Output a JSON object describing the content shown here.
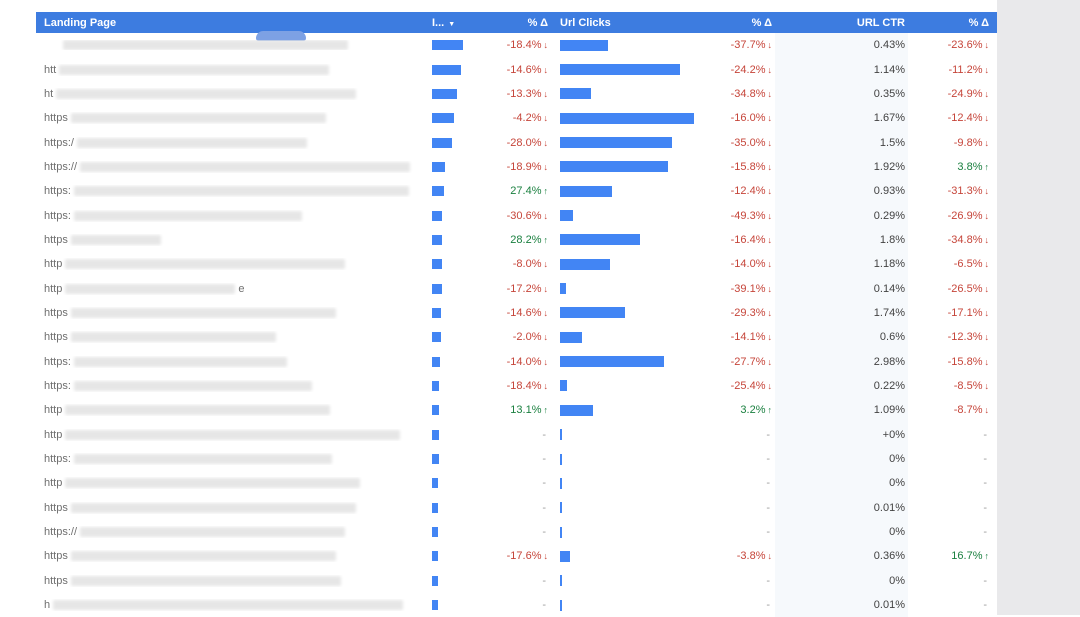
{
  "header": {
    "columns": {
      "landing_page": "Landing Page",
      "impressions": "I...",
      "impressions_sort": "▼",
      "imp_delta": "% Δ",
      "url_clicks": "Url Clicks",
      "clicks_delta": "% Δ",
      "url_ctr": "URL CTR",
      "ctr_delta": "% Δ"
    }
  },
  "colors": {
    "header_bg": "#3d7ce0",
    "header_blob": "#7da1e4",
    "bar_blue": "#4285f4",
    "negative": "#c6453a",
    "positive": "#1b8040",
    "dash": "#9e9e9e",
    "ctr_band": "#f6f9fc"
  },
  "table": {
    "rows": [
      {
        "prefix": "",
        "suffix": "",
        "indent": 16,
        "blur_w": 285,
        "imp_bar": 31,
        "imp_delta": "-18.4%",
        "imp_dir": "down",
        "clicks_bar": 48,
        "clicks_delta": "-37.7%",
        "clicks_dir": "down",
        "ctr": "0.43%",
        "ctr_delta": "-23.6%",
        "ctr_dir": "down"
      },
      {
        "prefix": "htt",
        "suffix": "",
        "indent": 0,
        "blur_w": 270,
        "imp_bar": 29,
        "imp_delta": "-14.6%",
        "imp_dir": "down",
        "clicks_bar": 120,
        "clicks_delta": "-24.2%",
        "clicks_dir": "down",
        "ctr": "1.14%",
        "ctr_delta": "-11.2%",
        "ctr_dir": "down"
      },
      {
        "prefix": "ht",
        "suffix": "",
        "indent": 0,
        "blur_w": 300,
        "imp_bar": 25,
        "imp_delta": "-13.3%",
        "imp_dir": "down",
        "clicks_bar": 31,
        "clicks_delta": "-34.8%",
        "clicks_dir": "down",
        "ctr": "0.35%",
        "ctr_delta": "-24.9%",
        "ctr_dir": "down"
      },
      {
        "prefix": "https",
        "suffix": "",
        "indent": 0,
        "blur_w": 255,
        "imp_bar": 22,
        "imp_delta": "-4.2%",
        "imp_dir": "down",
        "clicks_bar": 134,
        "clicks_delta": "-16.0%",
        "clicks_dir": "down",
        "ctr": "1.67%",
        "ctr_delta": "-12.4%",
        "ctr_dir": "down"
      },
      {
        "prefix": "https:/",
        "suffix": "",
        "indent": 0,
        "blur_w": 230,
        "imp_bar": 20,
        "imp_delta": "-28.0%",
        "imp_dir": "down",
        "clicks_bar": 112,
        "clicks_delta": "-35.0%",
        "clicks_dir": "down",
        "ctr": "1.5%",
        "ctr_delta": "-9.8%",
        "ctr_dir": "down"
      },
      {
        "prefix": "https://",
        "suffix": "",
        "indent": 0,
        "blur_w": 330,
        "imp_bar": 13,
        "imp_delta": "-18.9%",
        "imp_dir": "down",
        "clicks_bar": 108,
        "clicks_delta": "-15.8%",
        "clicks_dir": "down",
        "ctr": "1.92%",
        "ctr_delta": "3.8%",
        "ctr_dir": "up"
      },
      {
        "prefix": "https:",
        "suffix": "",
        "indent": 0,
        "blur_w": 335,
        "imp_bar": 12,
        "imp_delta": "27.4%",
        "imp_dir": "up",
        "clicks_bar": 52,
        "clicks_delta": "-12.4%",
        "clicks_dir": "down",
        "ctr": "0.93%",
        "ctr_delta": "-31.3%",
        "ctr_dir": "down"
      },
      {
        "prefix": "https:",
        "suffix": "",
        "indent": 0,
        "blur_w": 228,
        "imp_bar": 10,
        "imp_delta": "-30.6%",
        "imp_dir": "down",
        "clicks_bar": 13,
        "clicks_delta": "-49.3%",
        "clicks_dir": "down",
        "ctr": "0.29%",
        "ctr_delta": "-26.9%",
        "ctr_dir": "down"
      },
      {
        "prefix": "https",
        "suffix": "",
        "indent": 0,
        "blur_w": 90,
        "imp_bar": 10,
        "imp_delta": "28.2%",
        "imp_dir": "up",
        "clicks_bar": 80,
        "clicks_delta": "-16.4%",
        "clicks_dir": "down",
        "ctr": "1.8%",
        "ctr_delta": "-34.8%",
        "ctr_dir": "down"
      },
      {
        "prefix": "http",
        "suffix": "",
        "indent": 0,
        "blur_w": 280,
        "imp_bar": 10,
        "imp_delta": "-8.0%",
        "imp_dir": "down",
        "clicks_bar": 50,
        "clicks_delta": "-14.0%",
        "clicks_dir": "down",
        "ctr": "1.18%",
        "ctr_delta": "-6.5%",
        "ctr_dir": "down"
      },
      {
        "prefix": "http",
        "suffix": "e",
        "indent": 0,
        "blur_w": 170,
        "imp_bar": 10,
        "imp_delta": "-17.2%",
        "imp_dir": "down",
        "clicks_bar": 6,
        "clicks_delta": "-39.1%",
        "clicks_dir": "down",
        "ctr": "0.14%",
        "ctr_delta": "-26.5%",
        "ctr_dir": "down"
      },
      {
        "prefix": "https",
        "suffix": "",
        "indent": 0,
        "blur_w": 265,
        "imp_bar": 9,
        "imp_delta": "-14.6%",
        "imp_dir": "down",
        "clicks_bar": 65,
        "clicks_delta": "-29.3%",
        "clicks_dir": "down",
        "ctr": "1.74%",
        "ctr_delta": "-17.1%",
        "ctr_dir": "down"
      },
      {
        "prefix": "https",
        "suffix": "",
        "indent": 0,
        "blur_w": 205,
        "imp_bar": 9,
        "imp_delta": "-2.0%",
        "imp_dir": "down",
        "clicks_bar": 22,
        "clicks_delta": "-14.1%",
        "clicks_dir": "down",
        "ctr": "0.6%",
        "ctr_delta": "-12.3%",
        "ctr_dir": "down"
      },
      {
        "prefix": "https:",
        "suffix": "",
        "indent": 0,
        "blur_w": 213,
        "imp_bar": 8,
        "imp_delta": "-14.0%",
        "imp_dir": "down",
        "clicks_bar": 104,
        "clicks_delta": "-27.7%",
        "clicks_dir": "down",
        "ctr": "2.98%",
        "ctr_delta": "-15.8%",
        "ctr_dir": "down"
      },
      {
        "prefix": "https:",
        "suffix": "",
        "indent": 0,
        "blur_w": 238,
        "imp_bar": 7,
        "imp_delta": "-18.4%",
        "imp_dir": "down",
        "clicks_bar": 7,
        "clicks_delta": "-25.4%",
        "clicks_dir": "down",
        "ctr": "0.22%",
        "ctr_delta": "-8.5%",
        "ctr_dir": "down"
      },
      {
        "prefix": "http",
        "suffix": "",
        "indent": 0,
        "blur_w": 265,
        "imp_bar": 7,
        "imp_delta": "13.1%",
        "imp_dir": "up",
        "clicks_bar": 33,
        "clicks_delta": "3.2%",
        "clicks_dir": "up",
        "ctr": "1.09%",
        "ctr_delta": "-8.7%",
        "ctr_dir": "down"
      },
      {
        "prefix": "http",
        "suffix": "",
        "indent": 0,
        "blur_w": 335,
        "imp_bar": 7,
        "imp_delta": "-",
        "imp_dir": "none",
        "clicks_bar": 2,
        "clicks_delta": "-",
        "clicks_dir": "none",
        "ctr": "+0%",
        "ctr_delta": "-",
        "ctr_dir": "none"
      },
      {
        "prefix": "https:",
        "suffix": "",
        "indent": 0,
        "blur_w": 258,
        "imp_bar": 7,
        "imp_delta": "-",
        "imp_dir": "none",
        "clicks_bar": 2,
        "clicks_delta": "-",
        "clicks_dir": "none",
        "ctr": "0%",
        "ctr_delta": "-",
        "ctr_dir": "none"
      },
      {
        "prefix": "http",
        "suffix": "",
        "indent": 0,
        "blur_w": 295,
        "imp_bar": 6,
        "imp_delta": "-",
        "imp_dir": "none",
        "clicks_bar": 2,
        "clicks_delta": "-",
        "clicks_dir": "none",
        "ctr": "0%",
        "ctr_delta": "-",
        "ctr_dir": "none"
      },
      {
        "prefix": "https",
        "suffix": "",
        "indent": 0,
        "blur_w": 285,
        "imp_bar": 6,
        "imp_delta": "-",
        "imp_dir": "none",
        "clicks_bar": 2,
        "clicks_delta": "-",
        "clicks_dir": "none",
        "ctr": "0.01%",
        "ctr_delta": "-",
        "ctr_dir": "none"
      },
      {
        "prefix": "https://",
        "suffix": "",
        "indent": 0,
        "blur_w": 265,
        "imp_bar": 6,
        "imp_delta": "-",
        "imp_dir": "none",
        "clicks_bar": 2,
        "clicks_delta": "-",
        "clicks_dir": "none",
        "ctr": "0%",
        "ctr_delta": "-",
        "ctr_dir": "none"
      },
      {
        "prefix": "https",
        "suffix": "",
        "indent": 0,
        "blur_w": 265,
        "imp_bar": 6,
        "imp_delta": "-17.6%",
        "imp_dir": "down",
        "clicks_bar": 10,
        "clicks_delta": "-3.8%",
        "clicks_dir": "down",
        "ctr": "0.36%",
        "ctr_delta": "16.7%",
        "ctr_dir": "up"
      },
      {
        "prefix": "https",
        "suffix": "",
        "indent": 0,
        "blur_w": 270,
        "imp_bar": 6,
        "imp_delta": "-",
        "imp_dir": "none",
        "clicks_bar": 2,
        "clicks_delta": "-",
        "clicks_dir": "none",
        "ctr": "0%",
        "ctr_delta": "-",
        "ctr_dir": "none"
      },
      {
        "prefix": "h",
        "suffix": "",
        "indent": 0,
        "blur_w": 350,
        "imp_bar": 6,
        "imp_delta": "-",
        "imp_dir": "none",
        "clicks_bar": 2,
        "clicks_delta": "-",
        "clicks_dir": "none",
        "ctr": "0.01%",
        "ctr_delta": "-",
        "ctr_dir": "none"
      }
    ]
  }
}
